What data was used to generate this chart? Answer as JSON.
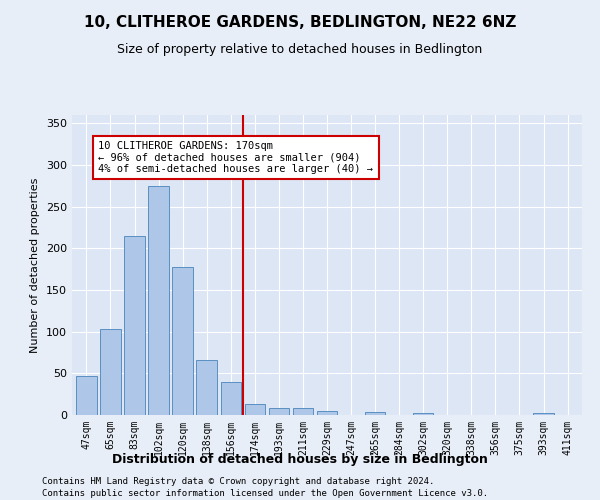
{
  "title": "10, CLITHEROE GARDENS, BEDLINGTON, NE22 6NZ",
  "subtitle": "Size of property relative to detached houses in Bedlington",
  "xlabel": "Distribution of detached houses by size in Bedlington",
  "ylabel": "Number of detached properties",
  "categories": [
    "47sqm",
    "65sqm",
    "83sqm",
    "102sqm",
    "120sqm",
    "138sqm",
    "156sqm",
    "174sqm",
    "193sqm",
    "211sqm",
    "229sqm",
    "247sqm",
    "265sqm",
    "284sqm",
    "302sqm",
    "320sqm",
    "338sqm",
    "356sqm",
    "375sqm",
    "393sqm",
    "411sqm"
  ],
  "values": [
    47,
    103,
    215,
    275,
    178,
    66,
    40,
    13,
    8,
    9,
    5,
    0,
    4,
    0,
    3,
    0,
    0,
    0,
    0,
    3,
    0
  ],
  "bar_color": "#aec6e8",
  "bar_edge_color": "#5a8fc2",
  "vline_x": 6.5,
  "vline_color": "#cc0000",
  "annotation_text": "10 CLITHEROE GARDENS: 170sqm\n← 96% of detached houses are smaller (904)\n4% of semi-detached houses are larger (40) →",
  "annotation_box_color": "#ffffff",
  "annotation_box_edge_color": "#cc0000",
  "ylim": [
    0,
    360
  ],
  "yticks": [
    0,
    50,
    100,
    150,
    200,
    250,
    300,
    350
  ],
  "footer_line1": "Contains HM Land Registry data © Crown copyright and database right 2024.",
  "footer_line2": "Contains public sector information licensed under the Open Government Licence v3.0.",
  "bg_color": "#e8eef8",
  "plot_bg_color": "#dce6f5",
  "title_fontsize": 11,
  "subtitle_fontsize": 9,
  "xlabel_fontsize": 9,
  "ylabel_fontsize": 8,
  "tick_fontsize": 8,
  "xtick_fontsize": 7,
  "footer_fontsize": 6.5
}
